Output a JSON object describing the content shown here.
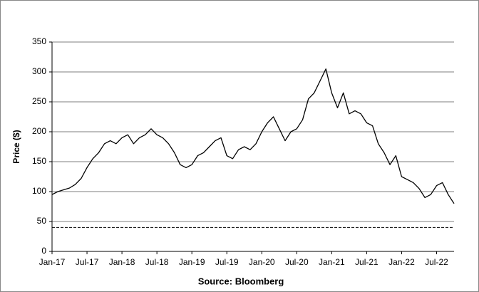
{
  "chart_data": {
    "type": "line",
    "y_label": "Price ($)",
    "source": "Source: Bloomberg",
    "categories": [
      "Jan-17",
      null,
      null,
      null,
      null,
      null,
      "Jul-17",
      null,
      null,
      null,
      null,
      null,
      "Jan-18",
      null,
      null,
      null,
      null,
      null,
      "Jul-18",
      null,
      null,
      null,
      null,
      null,
      "Jan-19",
      null,
      null,
      null,
      null,
      null,
      "Jul-19",
      null,
      null,
      null,
      null,
      null,
      "Jan-20",
      null,
      null,
      null,
      null,
      null,
      "Jul-20",
      null,
      null,
      null,
      null,
      null,
      "Jan-21",
      null,
      null,
      null,
      null,
      null,
      "Jul-21",
      null,
      null,
      null,
      null,
      null,
      "Jan-22",
      null,
      null,
      null,
      null,
      null,
      "Jul-22",
      null,
      null,
      null
    ],
    "series": [
      {
        "color": "#000000",
        "values": [
          95,
          100,
          103,
          106,
          112,
          122,
          140,
          155,
          165,
          180,
          185,
          180,
          190,
          195,
          180,
          190,
          195,
          205,
          195,
          190,
          180,
          165,
          145,
          140,
          145,
          160,
          165,
          175,
          185,
          190,
          160,
          155,
          170,
          175,
          170,
          180,
          200,
          215,
          225,
          205,
          185,
          200,
          205,
          220,
          255,
          265,
          285,
          305,
          265,
          240,
          265,
          230,
          235,
          230,
          215,
          210,
          180,
          165,
          145,
          160,
          125,
          120,
          115,
          105,
          90,
          95,
          110,
          115,
          95,
          80
        ]
      }
    ],
    "reference_line": 40,
    "ylim": [
      0,
      350
    ],
    "yticks": [
      0,
      50,
      100,
      150,
      200,
      250,
      300,
      350
    ],
    "grid": true
  }
}
